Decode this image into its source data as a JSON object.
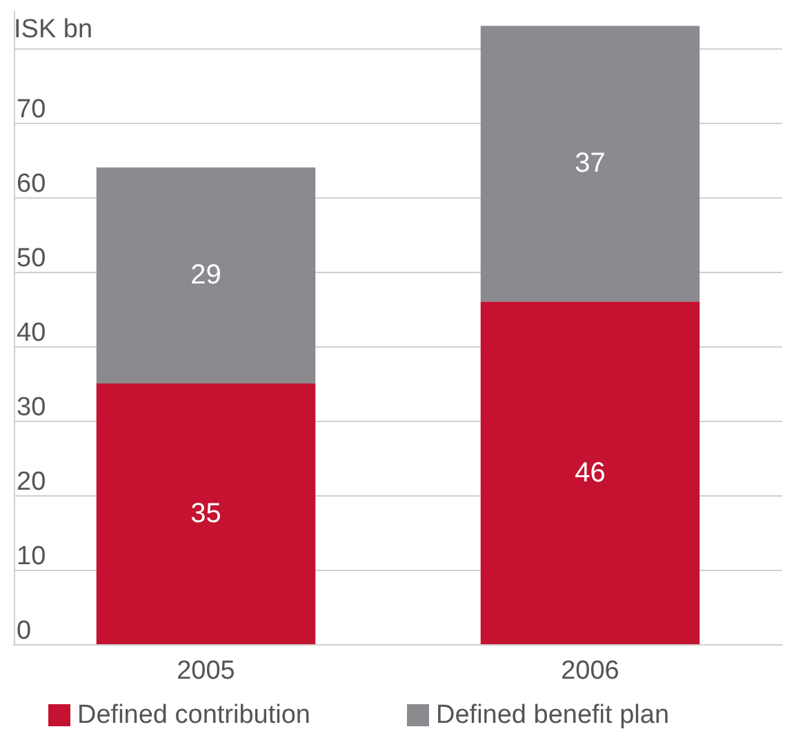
{
  "chart_data": {
    "type": "bar",
    "stacked": true,
    "ylabel": "ISK bn",
    "categories": [
      "2005",
      "2006"
    ],
    "series": [
      {
        "name": "Defined contribution",
        "color": "#c41230",
        "values": [
          35,
          46
        ]
      },
      {
        "name": "Defined benefit plan",
        "color": "#8c8a8e",
        "values": [
          29,
          37
        ]
      }
    ],
    "ylim": [
      0,
      85
    ],
    "yticks": [
      0,
      10,
      20,
      30,
      40,
      50,
      60,
      70,
      {
        "value": 80,
        "label": null
      }
    ],
    "grid": "y",
    "data_labels": true,
    "legend": "bottom left"
  }
}
